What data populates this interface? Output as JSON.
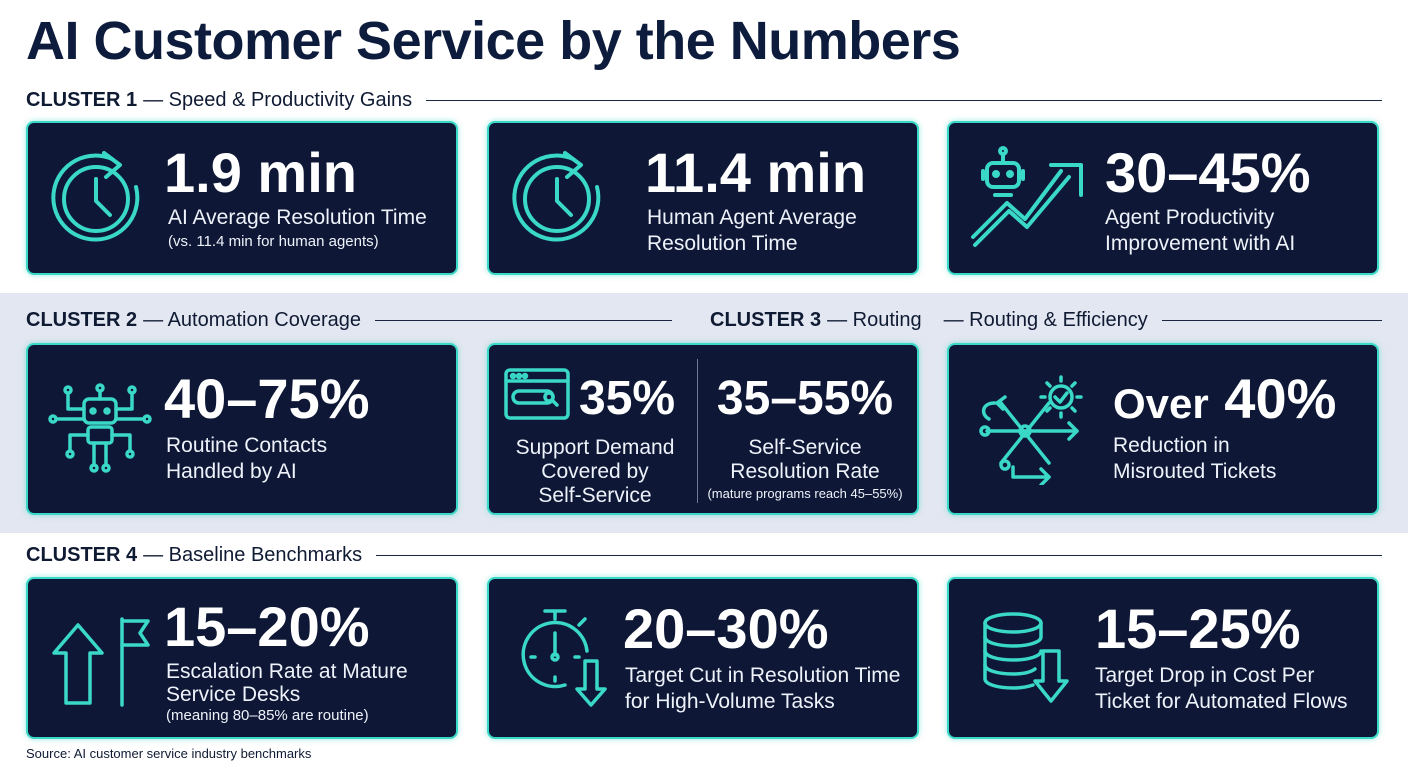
{
  "title": "AI Customer Service by the Numbers",
  "colors": {
    "card_bg": "#0e1836",
    "accent": "#3ad8c6",
    "band": "#e3e7f1",
    "title": "#0d1b3d"
  },
  "cluster1": {
    "label": "CLUSTER 1",
    "name": "— Speed & Productivity Gains"
  },
  "cluster2": {
    "label": "CLUSTER 2",
    "name": "— Automation Coverage"
  },
  "cluster3": {
    "label": "CLUSTER 3",
    "name": "— Routing",
    "name2": "— Routing & Efficiency"
  },
  "cluster4": {
    "label": "CLUSTER 4",
    "name": "— Baseline Benchmarks"
  },
  "cards": {
    "ai_resolution": {
      "value": "1.9 min",
      "label": "AI Average Resolution Time",
      "note": "(vs. 11.4 min for human agents)",
      "icon": "clock-refresh-icon"
    },
    "human_resolution": {
      "value": "11.4 min",
      "label1": "Human Agent Average",
      "label2": "Resolution Time",
      "icon": "clock-refresh-icon"
    },
    "productivity": {
      "value": "30–45%",
      "label1": "Agent Productivity",
      "label2": "Improvement with AI",
      "icon": "robot-trend-arrow-icon"
    },
    "routine_contacts": {
      "value": "40–75%",
      "label1": "Routine Contacts",
      "label2": "Handled by AI",
      "icon": "robot-circuit-icon"
    },
    "self_service": {
      "left_value": "35%",
      "left_label1": "Support Demand",
      "left_label2": "Covered by",
      "left_label3": "Self-Service",
      "left_icon": "browser-search-icon",
      "right_value": "35–55%",
      "right_label1": "Self-Service",
      "right_label2": "Resolution Rate",
      "right_note": "(mature programs reach 45–55%)"
    },
    "misrouted": {
      "prefix": "Over",
      "value": "40%",
      "label1": "Reduction in",
      "label2": "Misrouted Tickets",
      "icon": "routing-network-icon"
    },
    "escalation": {
      "value": "15–20%",
      "label1": "Escalation Rate at Mature",
      "label2": "Service Desks",
      "note": "(meaning 80–85% are routine)",
      "icon": "arrow-up-flag-icon"
    },
    "resolution_cut": {
      "value": "20–30%",
      "label1": "Target Cut in Resolution Time",
      "label2": "for High-Volume Tasks",
      "icon": "stopwatch-down-icon"
    },
    "cost_drop": {
      "value": "15–25%",
      "label1": "Target Drop in Cost Per",
      "label2": "Ticket for Automated Flows",
      "icon": "coins-down-icon"
    }
  },
  "source": "Source: AI customer service industry benchmarks"
}
